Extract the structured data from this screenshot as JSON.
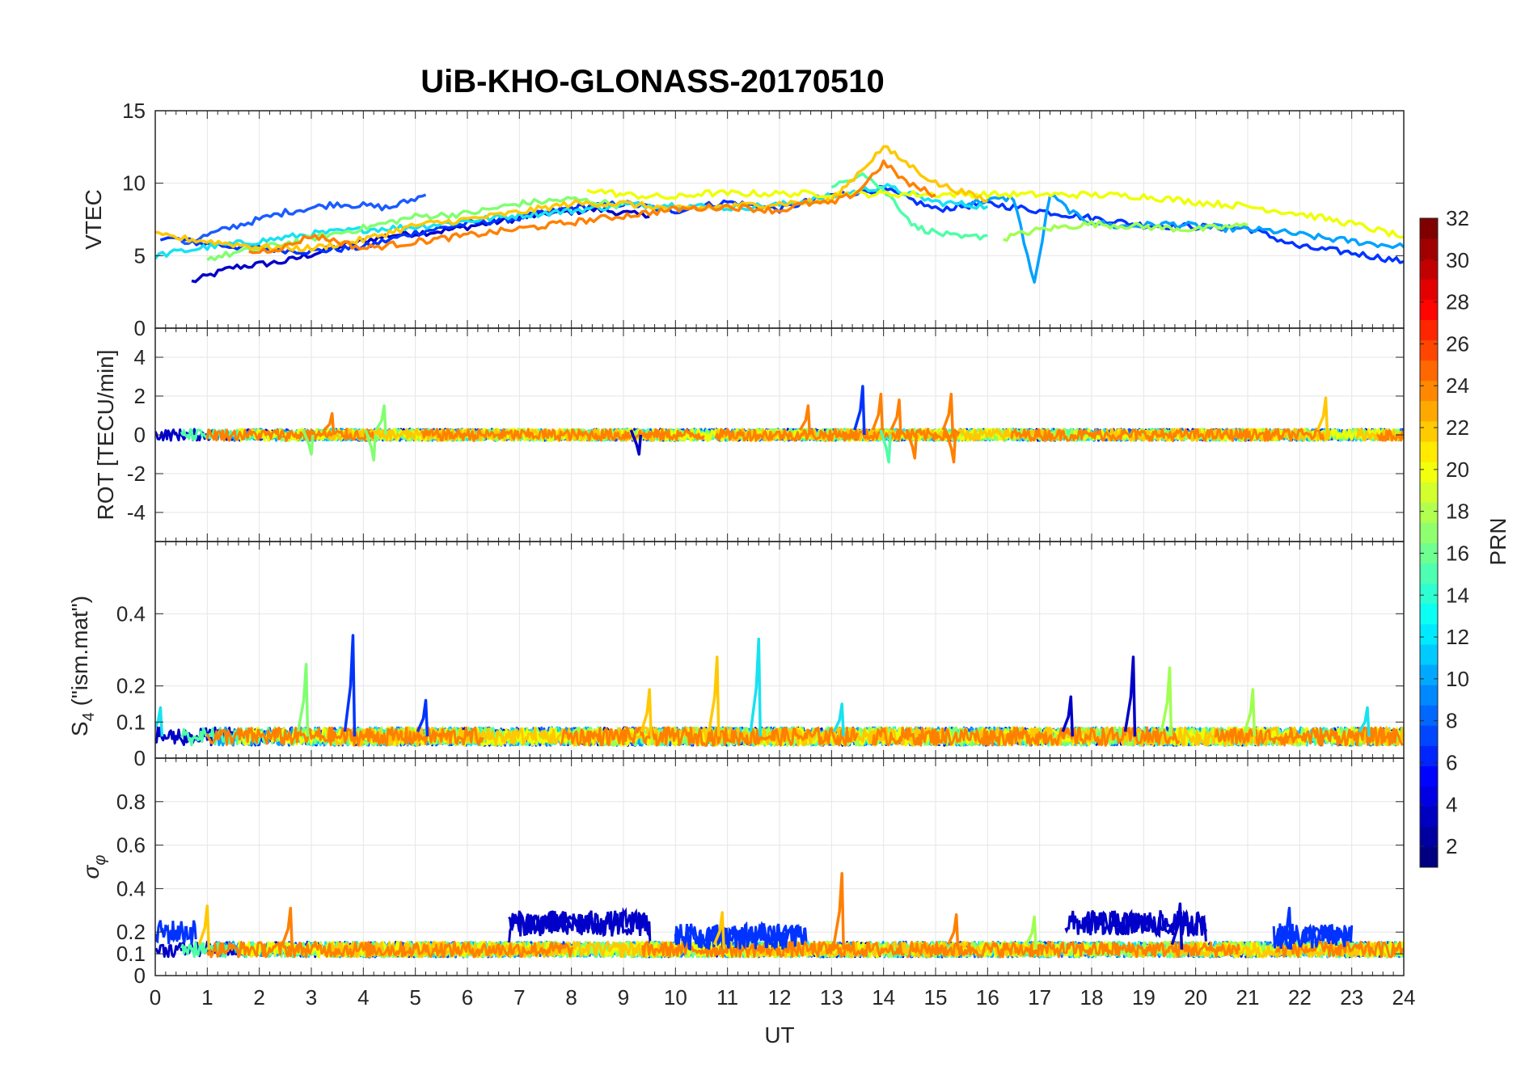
{
  "figure": {
    "title": "UiB-KHO-GLONASS-20170510",
    "xlabel": "UT",
    "colorbar_label": "PRN"
  },
  "chart_data": [
    {
      "type": "line",
      "id": "vtec",
      "ylabel": "VTEC",
      "ylim": [
        0,
        15
      ],
      "yticks": [
        0,
        5,
        10,
        15
      ],
      "xlim": [
        0,
        24
      ],
      "grid": true,
      "series": [
        {
          "prn": 2,
          "color": "#0000c8",
          "x": [
            0.7,
            1.5,
            2.5,
            3.5,
            4.5,
            5.5,
            6.5,
            7.5,
            8.5,
            9.5
          ],
          "y": [
            3.2,
            4.2,
            4.6,
            5.6,
            6.4,
            6.7,
            7.3,
            7.9,
            8.2,
            7.7
          ]
        },
        {
          "prn": 4,
          "color": "#0033ff",
          "x": [
            0.1,
            1,
            2,
            3,
            4,
            5,
            6,
            7,
            8,
            9,
            10,
            11,
            12,
            13,
            14,
            15,
            16,
            17,
            18,
            19,
            20,
            21,
            22,
            23,
            24
          ],
          "y": [
            6.3,
            5.8,
            5.5,
            5.3,
            5.6,
            6.6,
            7.2,
            7.6,
            8.3,
            8.6,
            8.1,
            8.7,
            8.2,
            9.2,
            9.6,
            8.2,
            8.6,
            8.1,
            7.6,
            7.1,
            7.0,
            6.9,
            5.6,
            5.2,
            4.6
          ]
        },
        {
          "prn": 6,
          "color": "#1a5cff",
          "x": [
            0.5,
            1.5,
            2.5,
            3.5,
            4.5,
            5.2
          ],
          "y": [
            5.8,
            7.0,
            8.0,
            8.6,
            8.3,
            9.2
          ]
        },
        {
          "prn": 10,
          "color": "#00a2ff",
          "x": [
            15.5,
            16.5,
            16.9,
            17.2,
            17.8,
            18.5,
            19.5,
            20.5,
            21.5,
            22.5,
            23.5,
            24
          ],
          "y": [
            8.6,
            9.0,
            3.0,
            9.2,
            7.5,
            7.0,
            7.2,
            6.9,
            6.7,
            6.2,
            5.8,
            5.6
          ]
        },
        {
          "prn": 12,
          "color": "#17e2f0",
          "x": [
            0,
            1,
            2,
            3,
            4,
            5,
            6,
            7,
            8,
            9,
            10,
            11,
            12,
            13,
            14,
            15,
            16
          ],
          "y": [
            5.0,
            5.6,
            6.0,
            6.5,
            6.8,
            7.0,
            7.4,
            7.8,
            8.1,
            8.5,
            8.5,
            8.3,
            8.5,
            9.1,
            9.8,
            8.7,
            8.4
          ]
        },
        {
          "prn": 15,
          "color": "#4dffa6",
          "x": [
            13,
            13.6,
            14.2,
            14.6,
            15,
            15.5,
            16
          ],
          "y": [
            9.6,
            10.8,
            8.8,
            7.0,
            6.6,
            6.2,
            6.4
          ]
        },
        {
          "prn": 16,
          "color": "#80ff70",
          "x": [
            1,
            2,
            3,
            4,
            5,
            6,
            7,
            8,
            9
          ],
          "y": [
            4.8,
            5.5,
            6.2,
            6.9,
            7.7,
            7.9,
            8.6,
            8.9,
            8.5
          ]
        },
        {
          "prn": 17,
          "color": "#a0ff50",
          "x": [
            16.3,
            17,
            18,
            19,
            20,
            21
          ],
          "y": [
            6.2,
            6.8,
            7.2,
            7.0,
            6.8,
            7.1
          ]
        },
        {
          "prn": 19,
          "color": "#eeff00",
          "x": [
            8.3,
            9,
            10,
            10.5,
            18,
            19,
            20,
            21,
            22,
            23,
            24
          ],
          "y": [
            9.6,
            9.2,
            9.0,
            9.3,
            9.2,
            9.1,
            8.7,
            8.4,
            7.9,
            7.2,
            6.3
          ]
        },
        {
          "prn": 21,
          "color": "#ffc800",
          "x": [
            0,
            1,
            2,
            3,
            4,
            5,
            6,
            7,
            8,
            9,
            10,
            11,
            12,
            13,
            14,
            15,
            16
          ],
          "y": [
            6.4,
            6.0,
            5.6,
            5.5,
            6.1,
            7.1,
            7.5,
            8.0,
            8.6,
            8.6,
            8.2,
            8.4,
            8.6,
            8.8,
            12.5,
            10.0,
            8.8
          ]
        },
        {
          "prn": 23,
          "color": "#ff8000",
          "x": [
            1.8,
            2.5,
            3,
            3.5,
            4,
            10,
            11,
            12,
            12.5,
            13,
            13.5,
            14,
            14.5,
            15
          ],
          "y": [
            5.2,
            5.6,
            6.4,
            6.0,
            5.5,
            8.2,
            8.4,
            8.1,
            8.6,
            8.6,
            9.4,
            11.4,
            9.9,
            9.2
          ]
        }
      ]
    },
    {
      "type": "line",
      "id": "rot",
      "ylabel": "ROT [TECU/min]",
      "ylim": [
        -5.5,
        5.5
      ],
      "yticks": [
        -4,
        -2,
        0,
        2,
        4
      ],
      "xlim": [
        0,
        24
      ],
      "grid": true,
      "noise_band": 0.3,
      "spikes": [
        {
          "x": 13.6,
          "y": 2.5,
          "color": "#0033ff"
        },
        {
          "x": 13.95,
          "y": 2.1,
          "color": "#ff8000"
        },
        {
          "x": 14.1,
          "y": -1.4,
          "color": "#4dffa6"
        },
        {
          "x": 15.3,
          "y": 2.1,
          "color": "#ff8000"
        },
        {
          "x": 15.35,
          "y": -1.4,
          "color": "#ff8000"
        },
        {
          "x": 14.3,
          "y": 1.8,
          "color": "#ff8000"
        },
        {
          "x": 14.6,
          "y": -1.2,
          "color": "#ff8000"
        },
        {
          "x": 22.5,
          "y": 1.9,
          "color": "#ffc800"
        },
        {
          "x": 3.4,
          "y": 1.1,
          "color": "#ff8000"
        },
        {
          "x": 4.4,
          "y": 1.5,
          "color": "#80ff70"
        },
        {
          "x": 4.2,
          "y": -1.3,
          "color": "#80ff70"
        },
        {
          "x": 12.55,
          "y": 1.5,
          "color": "#ff8000"
        },
        {
          "x": 9.3,
          "y": -1.0,
          "color": "#0000c8"
        },
        {
          "x": 3.0,
          "y": -1.0,
          "color": "#80ff70"
        }
      ]
    },
    {
      "type": "line",
      "id": "s4",
      "ylabel": "S4 (\"ism.mat\")",
      "ylim": [
        0,
        0.6
      ],
      "yticks": [
        0,
        0.1,
        0.2,
        0.4
      ],
      "xlim": [
        0,
        24
      ],
      "grid": true,
      "baseline": 0.06,
      "spikes": [
        {
          "x": 3.8,
          "y": 0.34,
          "color": "#0033ff"
        },
        {
          "x": 2.9,
          "y": 0.26,
          "color": "#80ff70"
        },
        {
          "x": 5.2,
          "y": 0.16,
          "color": "#0033ff"
        },
        {
          "x": 9.5,
          "y": 0.19,
          "color": "#ffc800"
        },
        {
          "x": 10.8,
          "y": 0.28,
          "color": "#ffc800"
        },
        {
          "x": 11.6,
          "y": 0.33,
          "color": "#17e2f0"
        },
        {
          "x": 13.2,
          "y": 0.15,
          "color": "#17e2f0"
        },
        {
          "x": 17.6,
          "y": 0.17,
          "color": "#0000c8"
        },
        {
          "x": 18.8,
          "y": 0.28,
          "color": "#0000c8"
        },
        {
          "x": 19.5,
          "y": 0.25,
          "color": "#a0ff50"
        },
        {
          "x": 21.1,
          "y": 0.19,
          "color": "#a0ff50"
        },
        {
          "x": 0.1,
          "y": 0.14,
          "color": "#17e2f0"
        },
        {
          "x": 23.3,
          "y": 0.14,
          "color": "#17e2f0"
        }
      ]
    },
    {
      "type": "line",
      "id": "sigma",
      "ylabel": "σφ",
      "ylim": [
        0,
        1
      ],
      "yticks": [
        0,
        0.1,
        0.2,
        0.4,
        0.6,
        0.8
      ],
      "xlim": [
        0,
        24
      ],
      "grid": true,
      "baseline": 0.12,
      "elevated": [
        {
          "x0": 0,
          "x1": 0.8,
          "y": 0.2,
          "color": "#0033ff"
        },
        {
          "x0": 6.8,
          "x1": 9.5,
          "y": 0.24,
          "color": "#0000c8"
        },
        {
          "x0": 17.5,
          "x1": 20.2,
          "y": 0.24,
          "color": "#0000c8"
        },
        {
          "x0": 10,
          "x1": 12.5,
          "y": 0.18,
          "color": "#0033ff"
        },
        {
          "x0": 21.5,
          "x1": 23.0,
          "y": 0.18,
          "color": "#0033ff"
        }
      ],
      "spikes": [
        {
          "x": 1.0,
          "y": 0.32,
          "color": "#ffc800"
        },
        {
          "x": 2.6,
          "y": 0.31,
          "color": "#ff8000"
        },
        {
          "x": 13.2,
          "y": 0.47,
          "color": "#ff8000"
        },
        {
          "x": 19.7,
          "y": 0.33,
          "color": "#0000c8"
        },
        {
          "x": 21.8,
          "y": 0.31,
          "color": "#0033ff"
        },
        {
          "x": 15.4,
          "y": 0.28,
          "color": "#ff8000"
        },
        {
          "x": 10.9,
          "y": 0.29,
          "color": "#ffc800"
        },
        {
          "x": 16.9,
          "y": 0.27,
          "color": "#a0ff50"
        }
      ]
    }
  ],
  "xticks": [
    0,
    1,
    2,
    3,
    4,
    5,
    6,
    7,
    8,
    9,
    10,
    11,
    12,
    13,
    14,
    15,
    16,
    17,
    18,
    19,
    20,
    21,
    22,
    23,
    24
  ],
  "colorbar": {
    "range": [
      1,
      32
    ],
    "ticks": [
      2,
      4,
      6,
      8,
      10,
      12,
      14,
      16,
      18,
      20,
      22,
      24,
      26,
      28,
      30,
      32
    ],
    "colormap": "jet"
  }
}
